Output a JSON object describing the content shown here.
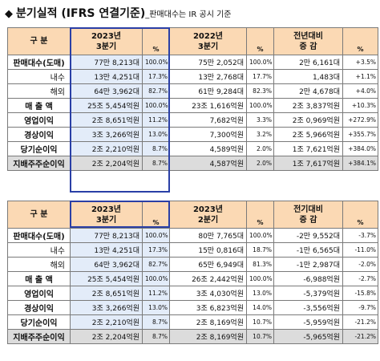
{
  "title": {
    "bullet": "◆",
    "main": "분기실적",
    "paren": "(IFRS 연결기준)",
    "note": "_판매대수는 IR 공시 기준"
  },
  "tables": [
    {
      "headers": {
        "label": "구  분",
        "cur_line1": "2023년",
        "cur_line2": "3분기",
        "pct": "%",
        "cmp_line1": "2022년",
        "cmp_line2": "3분기",
        "diff_line1": "전년대비",
        "diff_line2": "증  감"
      },
      "rows": [
        {
          "label": "판매대수(도매)",
          "sub": false,
          "cur": "77만 8,213대",
          "cur_pct": "100.0%",
          "cmp": "75만 2,052대",
          "cmp_pct": "100.0%",
          "diff": "2만 6,161대",
          "diff_pct": "+3.5%"
        },
        {
          "label": "내수",
          "sub": true,
          "cur": "13만 4,251대",
          "cur_pct": "17.3%",
          "cmp": "13만 2,768대",
          "cmp_pct": "17.7%",
          "diff": "1,483대",
          "diff_pct": "+1.1%"
        },
        {
          "label": "해외",
          "sub": true,
          "cur": "64만 3,962대",
          "cur_pct": "82.7%",
          "cmp": "61만 9,284대",
          "cmp_pct": "82.3%",
          "diff": "2만 4,678대",
          "diff_pct": "+4.0%"
        },
        {
          "label": "매 출 액",
          "sub": false,
          "cur": "25조 5,454억원",
          "cur_pct": "100.0%",
          "cmp": "23조 1,616억원",
          "cmp_pct": "100.0%",
          "diff": "2조 3,837억원",
          "diff_pct": "+10.3%"
        },
        {
          "label": "영업이익",
          "sub": false,
          "cur": "2조 8,651억원",
          "cur_pct": "11.2%",
          "cmp": "7,682억원",
          "cmp_pct": "3.3%",
          "diff": "2조 0,969억원",
          "diff_pct": "+272.9%"
        },
        {
          "label": "경상이익",
          "sub": false,
          "cur": "3조 3,266억원",
          "cur_pct": "13.0%",
          "cmp": "7,300억원",
          "cmp_pct": "3.2%",
          "diff": "2조 5,966억원",
          "diff_pct": "+355.7%"
        },
        {
          "label": "당기순이익",
          "sub": false,
          "cur": "2조 2,210억원",
          "cur_pct": "8.7%",
          "cmp": "4,589억원",
          "cmp_pct": "2.0%",
          "diff": "1조 7,621억원",
          "diff_pct": "+384.0%"
        },
        {
          "label": "지배주주순이익",
          "sub": false,
          "total": true,
          "cur": "2조 2,204억원",
          "cur_pct": "8.7%",
          "cmp": "4,587억원",
          "cmp_pct": "2.0%",
          "diff": "1조 7,617억원",
          "diff_pct": "+384.1%"
        }
      ]
    },
    {
      "headers": {
        "label": "구  분",
        "cur_line1": "2023년",
        "cur_line2": "3분기",
        "pct": "%",
        "cmp_line1": "2023년",
        "cmp_line2": "2분기",
        "diff_line1": "전기대비",
        "diff_line2": "증  감"
      },
      "rows": [
        {
          "label": "판매대수(도매)",
          "sub": false,
          "cur": "77만 8,213대",
          "cur_pct": "100.0%",
          "cmp": "80만 7,765대",
          "cmp_pct": "100.0%",
          "diff": "-2만 9,552대",
          "diff_pct": "-3.7%"
        },
        {
          "label": "내수",
          "sub": true,
          "cur": "13만 4,251대",
          "cur_pct": "17.3%",
          "cmp": "15만 0,816대",
          "cmp_pct": "18.7%",
          "diff": "-1만 6,565대",
          "diff_pct": "-11.0%"
        },
        {
          "label": "해외",
          "sub": true,
          "cur": "64만 3,962대",
          "cur_pct": "82.7%",
          "cmp": "65만 6,949대",
          "cmp_pct": "81.3%",
          "diff": "-1만 2,987대",
          "diff_pct": "-2.0%"
        },
        {
          "label": "매 출 액",
          "sub": false,
          "cur": "25조 5,454억원",
          "cur_pct": "100.0%",
          "cmp": "26조 2,442억원",
          "cmp_pct": "100.0%",
          "diff": "-6,988억원",
          "diff_pct": "-2.7%"
        },
        {
          "label": "영업이익",
          "sub": false,
          "cur": "2조 8,651억원",
          "cur_pct": "11.2%",
          "cmp": "3조 4,030억원",
          "cmp_pct": "13.0%",
          "diff": "-5,379억원",
          "diff_pct": "-15.8%"
        },
        {
          "label": "경상이익",
          "sub": false,
          "cur": "3조 3,266억원",
          "cur_pct": "13.0%",
          "cmp": "3조 6,823억원",
          "cmp_pct": "14.0%",
          "diff": "-3,556억원",
          "diff_pct": "-9.7%"
        },
        {
          "label": "당기순이익",
          "sub": false,
          "cur": "2조 2,210억원",
          "cur_pct": "8.7%",
          "cmp": "2조 8,169억원",
          "cmp_pct": "10.7%",
          "diff": "-5,959억원",
          "diff_pct": "-21.2%"
        },
        {
          "label": "지배주주순이익",
          "sub": false,
          "total": true,
          "cur": "2조 2,204억원",
          "cur_pct": "8.7%",
          "cmp": "2조 8,169억원",
          "cmp_pct": "10.7%",
          "diff": "-5,965억원",
          "diff_pct": "-21.2%"
        }
      ]
    }
  ]
}
